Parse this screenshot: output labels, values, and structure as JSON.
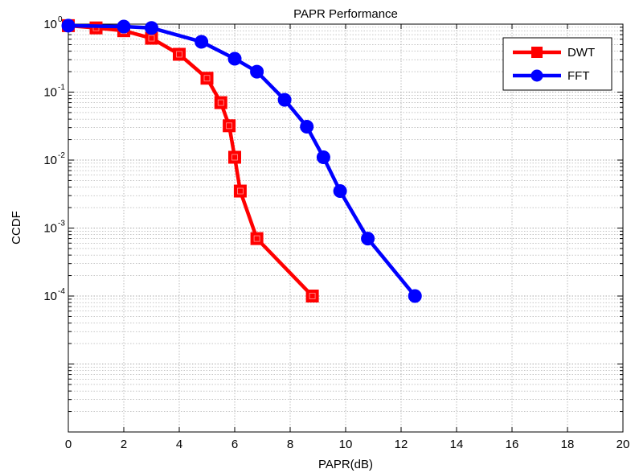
{
  "chart_data": {
    "type": "line",
    "title": "PAPR Performance",
    "xlabel": "PAPR(dB)",
    "ylabel": "CCDF",
    "xlim": [
      0,
      20
    ],
    "ylim": [
      1e-06,
      1
    ],
    "yscale": "log",
    "x_ticks": [
      0,
      2,
      4,
      6,
      8,
      10,
      12,
      14,
      16,
      18,
      20
    ],
    "y_ticks": [
      {
        "value": 1,
        "base": "10",
        "exp": "0"
      },
      {
        "value": 0.1,
        "base": "10",
        "exp": "-1"
      },
      {
        "value": 0.01,
        "base": "10",
        "exp": "-2"
      },
      {
        "value": 0.001,
        "base": "10",
        "exp": "-3"
      },
      {
        "value": 0.0001,
        "base": "10",
        "exp": "-4"
      }
    ],
    "grid": true,
    "legend_position": "top-right",
    "series": [
      {
        "name": "DWT",
        "color": "#ff0000",
        "marker": "square",
        "x": [
          0,
          1,
          2,
          3,
          4,
          5,
          5.5,
          5.8,
          6.0,
          6.2,
          6.8,
          8.8
        ],
        "y": [
          0.95,
          0.88,
          0.8,
          0.62,
          0.36,
          0.16,
          0.07,
          0.032,
          0.011,
          0.0035,
          0.0007,
          0.0001
        ]
      },
      {
        "name": "FFT",
        "color": "#0000ff",
        "marker": "circle",
        "x": [
          0,
          2,
          3,
          4.8,
          6,
          6.8,
          7.8,
          8.6,
          9.2,
          9.8,
          10.8,
          12.5
        ],
        "y": [
          0.95,
          0.92,
          0.88,
          0.55,
          0.31,
          0.2,
          0.077,
          0.031,
          0.011,
          0.0035,
          0.0007,
          0.0001
        ]
      }
    ]
  }
}
